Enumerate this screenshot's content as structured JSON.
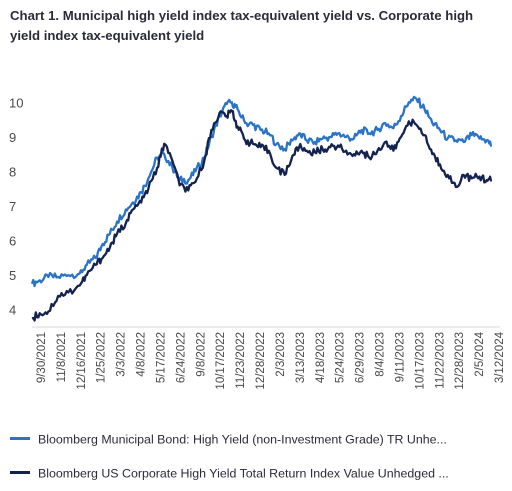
{
  "title": "Chart 1. Municipal high yield index tax-equivalent yield vs. Corporate high yield index tax-equivalent yield",
  "colors": {
    "muni": "#2a74c8",
    "corp": "#14224f",
    "axis": "#d9d9d9",
    "text": "#4a4a4a"
  },
  "chart_data": {
    "type": "line",
    "ylim": [
      3.5,
      10.5
    ],
    "yticks": [
      4,
      5,
      6,
      7,
      8,
      9,
      10
    ],
    "xlim": [
      "2021-09-30",
      "2024-03-31"
    ],
    "xticks": [
      "9/30/2021",
      "11/8/2021",
      "12/16/2021",
      "1/25/2022",
      "3/3/2022",
      "4/8/2022",
      "5/17/2022",
      "6/24/2022",
      "9/8/2022",
      "10/17/2022",
      "11/23/2022",
      "12/28/2022",
      "2/3/2023",
      "3/13/2023",
      "4/18/2023",
      "5/24/2023",
      "6/29/2023",
      "8/4/2023",
      "9/11/2023",
      "10/17/2023",
      "11/22/2023",
      "12/28/2023",
      "2/5/2024",
      "3/12/2024"
    ],
    "grid": false,
    "legend_position": "bottom",
    "series": [
      {
        "name": "Bloomberg Municipal Bond: High Yield (non-Investment Grade) TR Unhe...",
        "key": "muni",
        "points": [
          [
            "2021-09-30",
            4.75
          ],
          [
            "2021-10-15",
            4.85
          ],
          [
            "2021-11-01",
            4.95
          ],
          [
            "2021-11-20",
            4.95
          ],
          [
            "2021-12-10",
            5.0
          ],
          [
            "2022-01-01",
            5.05
          ],
          [
            "2022-01-15",
            5.3
          ],
          [
            "2022-02-01",
            5.5
          ],
          [
            "2022-02-15",
            5.9
          ],
          [
            "2022-03-01",
            6.2
          ],
          [
            "2022-03-15",
            6.55
          ],
          [
            "2022-04-01",
            6.9
          ],
          [
            "2022-04-15",
            7.1
          ],
          [
            "2022-05-01",
            7.4
          ],
          [
            "2022-05-15",
            7.8
          ],
          [
            "2022-06-01",
            8.4
          ],
          [
            "2022-06-15",
            8.5
          ],
          [
            "2022-07-01",
            8.1
          ],
          [
            "2022-07-15",
            7.75
          ],
          [
            "2022-08-01",
            7.75
          ],
          [
            "2022-08-15",
            8.0
          ],
          [
            "2022-09-01",
            8.4
          ],
          [
            "2022-09-15",
            9.0
          ],
          [
            "2022-10-01",
            9.6
          ],
          [
            "2022-10-15",
            9.95
          ],
          [
            "2022-10-25",
            10.0
          ],
          [
            "2022-11-05",
            9.8
          ],
          [
            "2022-11-20",
            9.4
          ],
          [
            "2022-12-05",
            9.35
          ],
          [
            "2022-12-20",
            9.2
          ],
          [
            "2023-01-05",
            9.1
          ],
          [
            "2023-01-20",
            8.8
          ],
          [
            "2023-02-05",
            8.65
          ],
          [
            "2023-02-20",
            8.9
          ],
          [
            "2023-03-05",
            9.1
          ],
          [
            "2023-03-20",
            8.9
          ],
          [
            "2023-04-05",
            8.85
          ],
          [
            "2023-04-20",
            8.95
          ],
          [
            "2023-05-05",
            9.0
          ],
          [
            "2023-05-20",
            9.1
          ],
          [
            "2023-06-05",
            9.0
          ],
          [
            "2023-06-20",
            8.95
          ],
          [
            "2023-07-05",
            9.2
          ],
          [
            "2023-07-20",
            9.1
          ],
          [
            "2023-08-05",
            9.2
          ],
          [
            "2023-08-20",
            9.4
          ],
          [
            "2023-09-05",
            9.25
          ],
          [
            "2023-09-20",
            9.6
          ],
          [
            "2023-10-05",
            10.0
          ],
          [
            "2023-10-20",
            10.1
          ],
          [
            "2023-11-05",
            9.8
          ],
          [
            "2023-11-20",
            9.4
          ],
          [
            "2023-12-05",
            9.2
          ],
          [
            "2023-12-20",
            8.95
          ],
          [
            "2024-01-05",
            8.9
          ],
          [
            "2024-01-20",
            8.85
          ],
          [
            "2024-02-05",
            9.05
          ],
          [
            "2024-02-20",
            8.95
          ],
          [
            "2024-03-05",
            8.9
          ],
          [
            "2024-03-15",
            8.75
          ]
        ]
      },
      {
        "name": "Bloomberg US Corporate High Yield Total Return Index Value Unhedged ...",
        "key": "corp",
        "points": [
          [
            "2021-09-30",
            3.75
          ],
          [
            "2021-10-15",
            3.9
          ],
          [
            "2021-11-01",
            3.95
          ],
          [
            "2021-11-20",
            4.4
          ],
          [
            "2021-12-10",
            4.5
          ],
          [
            "2022-01-01",
            4.7
          ],
          [
            "2022-01-15",
            5.0
          ],
          [
            "2022-02-01",
            5.3
          ],
          [
            "2022-02-15",
            5.5
          ],
          [
            "2022-03-01",
            5.8
          ],
          [
            "2022-03-15",
            6.2
          ],
          [
            "2022-04-01",
            6.5
          ],
          [
            "2022-04-15",
            6.9
          ],
          [
            "2022-05-01",
            7.1
          ],
          [
            "2022-05-15",
            7.5
          ],
          [
            "2022-06-01",
            8.1
          ],
          [
            "2022-06-15",
            8.8
          ],
          [
            "2022-07-01",
            8.3
          ],
          [
            "2022-07-15",
            7.6
          ],
          [
            "2022-08-01",
            7.45
          ],
          [
            "2022-08-15",
            7.7
          ],
          [
            "2022-09-01",
            8.3
          ],
          [
            "2022-09-15",
            9.2
          ],
          [
            "2022-10-01",
            9.7
          ],
          [
            "2022-10-15",
            9.6
          ],
          [
            "2022-10-25",
            9.75
          ],
          [
            "2022-11-05",
            9.3
          ],
          [
            "2022-11-20",
            8.9
          ],
          [
            "2022-12-05",
            8.8
          ],
          [
            "2022-12-20",
            8.7
          ],
          [
            "2023-01-05",
            8.6
          ],
          [
            "2023-01-20",
            8.1
          ],
          [
            "2023-02-05",
            7.9
          ],
          [
            "2023-02-20",
            8.45
          ],
          [
            "2023-03-05",
            8.7
          ],
          [
            "2023-03-20",
            8.6
          ],
          [
            "2023-04-05",
            8.55
          ],
          [
            "2023-04-20",
            8.65
          ],
          [
            "2023-05-05",
            8.7
          ],
          [
            "2023-05-20",
            8.75
          ],
          [
            "2023-06-05",
            8.6
          ],
          [
            "2023-06-20",
            8.5
          ],
          [
            "2023-07-05",
            8.6
          ],
          [
            "2023-07-20",
            8.4
          ],
          [
            "2023-08-05",
            8.6
          ],
          [
            "2023-08-20",
            8.85
          ],
          [
            "2023-09-05",
            8.6
          ],
          [
            "2023-09-20",
            9.0
          ],
          [
            "2023-10-05",
            9.45
          ],
          [
            "2023-10-20",
            9.35
          ],
          [
            "2023-11-05",
            9.05
          ],
          [
            "2023-11-20",
            8.5
          ],
          [
            "2023-12-05",
            8.2
          ],
          [
            "2023-12-20",
            7.9
          ],
          [
            "2024-01-05",
            7.55
          ],
          [
            "2024-01-20",
            7.9
          ],
          [
            "2024-02-05",
            7.8
          ],
          [
            "2024-02-20",
            7.85
          ],
          [
            "2024-03-05",
            7.75
          ],
          [
            "2024-03-15",
            7.75
          ]
        ]
      }
    ]
  }
}
